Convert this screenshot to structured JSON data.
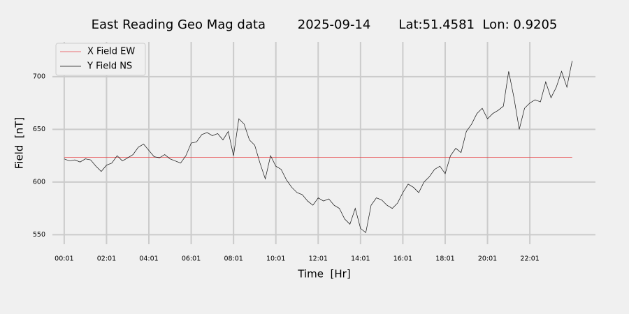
{
  "chart_data": {
    "type": "line",
    "title": "East Reading Geo Mag data        2025-09-14       Lat:51.4581  Lon: 0.9205",
    "xlabel": "Time  [Hr]",
    "ylabel": "Field  [nT]",
    "x": [
      0,
      0.25,
      0.5,
      0.75,
      1,
      1.25,
      1.5,
      1.75,
      2,
      2.25,
      2.5,
      2.75,
      3,
      3.25,
      3.5,
      3.75,
      4,
      4.25,
      4.5,
      4.75,
      5,
      5.25,
      5.5,
      5.75,
      6,
      6.25,
      6.5,
      6.75,
      7,
      7.25,
      7.5,
      7.75,
      8,
      8.25,
      8.5,
      8.75,
      9,
      9.25,
      9.5,
      9.75,
      10,
      10.25,
      10.5,
      10.75,
      11,
      11.25,
      11.5,
      11.75,
      12,
      12.25,
      12.5,
      12.75,
      13,
      13.25,
      13.5,
      13.75,
      14,
      14.25,
      14.5,
      14.75,
      15,
      15.25,
      15.5,
      15.75,
      16,
      16.25,
      16.5,
      16.75,
      17,
      17.25,
      17.5,
      17.75,
      18,
      18.25,
      18.5,
      18.75,
      19,
      19.25,
      19.5,
      19.75,
      20,
      20.25,
      20.5,
      20.75,
      21,
      21.25,
      21.5,
      21.75,
      22,
      22.25,
      22.5,
      22.75,
      23,
      23.25,
      23.5,
      23.75,
      24
    ],
    "series": [
      {
        "name": "X Field EW",
        "color": "#e8474a",
        "values": [
          623.5,
          623.5,
          623.5,
          623.5,
          623.5,
          623.5,
          623.5,
          623.5,
          623.5,
          623.5,
          623.5,
          623.5,
          623.5,
          623.5,
          623.5,
          623.5,
          623.5,
          623.5,
          623.5,
          623.5,
          623.5,
          623.5,
          623.5,
          623.5,
          623.5,
          623.5,
          623.5,
          623.5,
          623.5,
          623.5,
          623.5,
          623.5,
          623.5,
          623.5,
          623.5,
          623.5,
          623.5,
          623.5,
          623.5,
          623.5,
          623.5,
          623.5,
          623.5,
          623.5,
          623.5,
          623.5,
          623.5,
          623.5,
          623.5,
          623.5,
          623.5,
          623.5,
          623.5,
          623.5,
          623.5,
          623.5,
          623.5,
          623.5,
          623.5,
          623.5,
          623.5,
          623.5,
          623.5,
          623.5,
          623.5,
          623.5,
          623.5,
          623.5,
          623.5,
          623.5,
          623.5,
          623.5,
          623.5,
          623.5,
          623.5,
          623.5,
          623.5,
          623.5,
          623.5,
          623.5,
          623.5,
          623.5,
          623.5,
          623.5,
          623.5,
          623.5,
          623.5,
          623.5,
          623.5,
          623.5,
          623.5,
          623.5,
          623.5,
          623.5,
          623.5,
          623.5,
          623.5
        ]
      },
      {
        "name": "Y Field NS",
        "color": "#111111",
        "values": [
          622,
          620,
          621,
          619,
          622,
          621,
          615,
          610,
          616,
          618,
          625,
          620,
          623,
          626,
          633,
          636,
          630,
          624,
          623,
          626,
          622,
          620,
          618,
          625,
          637,
          638,
          645,
          647,
          644,
          646,
          640,
          648,
          625,
          660,
          655,
          640,
          635,
          618,
          603,
          625,
          615,
          612,
          602,
          595,
          590,
          588,
          582,
          578,
          585,
          582,
          584,
          578,
          575,
          565,
          560,
          575,
          556,
          552,
          578,
          585,
          583,
          578,
          575,
          580,
          590,
          598,
          595,
          590,
          600,
          605,
          612,
          615,
          608,
          625,
          632,
          628,
          648,
          655,
          665,
          670,
          660,
          665,
          668,
          672,
          705,
          680,
          650,
          670,
          675,
          678,
          676,
          695,
          680,
          690,
          705,
          690,
          715
        ]
      }
    ],
    "xlim": [
      -0.557,
      25.1
    ],
    "ylim": [
      541,
      733
    ],
    "xticks": [
      {
        "value": 0,
        "label": "00:01"
      },
      {
        "value": 2,
        "label": "02:01"
      },
      {
        "value": 4,
        "label": "04:01"
      },
      {
        "value": 6,
        "label": "06:01"
      },
      {
        "value": 8,
        "label": "08:01"
      },
      {
        "value": 10,
        "label": "10:01"
      },
      {
        "value": 12,
        "label": "12:01"
      },
      {
        "value": 14,
        "label": "14:01"
      },
      {
        "value": 16,
        "label": "16:01"
      },
      {
        "value": 18,
        "label": "18:01"
      },
      {
        "value": 20,
        "label": "20:01"
      },
      {
        "value": 22,
        "label": "22:01"
      }
    ],
    "yticks": [
      550,
      600,
      650,
      700
    ],
    "grid": true,
    "legend": "upper left"
  }
}
